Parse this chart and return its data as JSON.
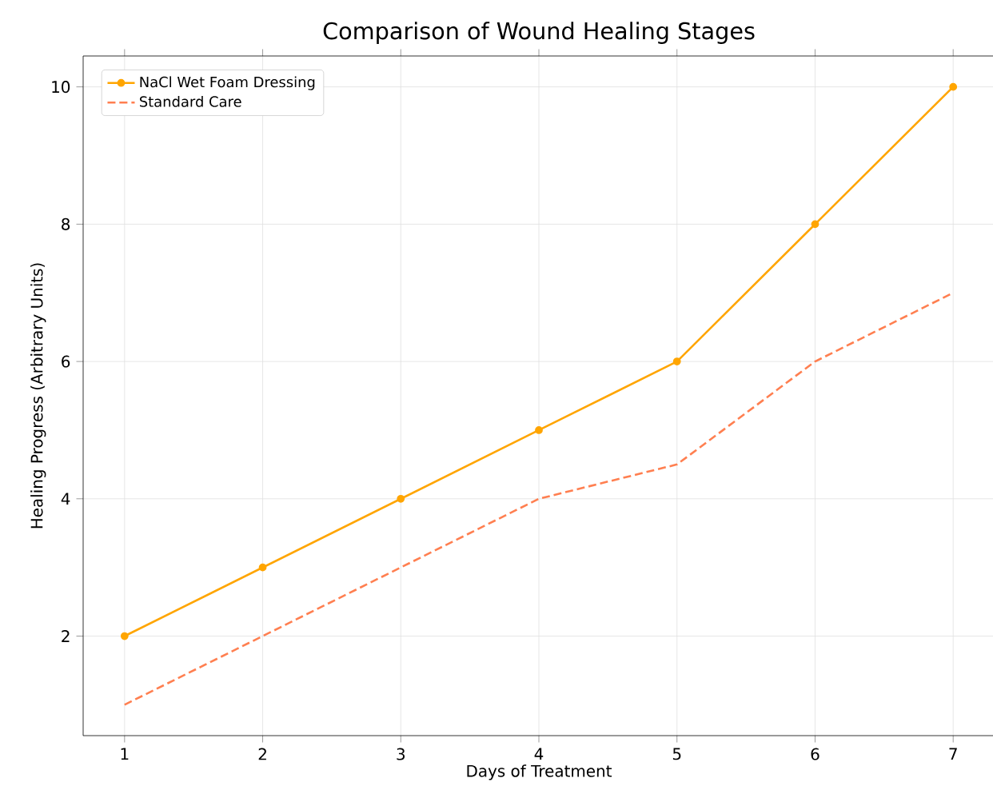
{
  "chart_data": {
    "type": "line",
    "title": "Comparison of Wound Healing Stages",
    "xlabel": "Days of Treatment",
    "ylabel": "Healing Progress (Arbitrary Units)",
    "x": [
      1,
      2,
      3,
      4,
      5,
      6,
      7
    ],
    "series": [
      {
        "name": "NaCl Wet Foam Dressing",
        "color": "#ffa500",
        "values": [
          2,
          3,
          4,
          5,
          6,
          8,
          10
        ],
        "marker": "circle",
        "line_style": "solid"
      },
      {
        "name": "Standard Care",
        "color": "#ff7f50",
        "values": [
          1,
          2,
          3,
          4,
          4.5,
          6,
          7
        ],
        "marker": "none",
        "line_style": "dashed"
      }
    ],
    "xlim": [
      0.7,
      7.3
    ],
    "ylim": [
      0.55,
      10.45
    ],
    "xticks": [
      1,
      2,
      3,
      4,
      5,
      6,
      7
    ],
    "yticks": [
      2,
      4,
      6,
      8,
      10
    ],
    "grid": true,
    "legend": "top left"
  }
}
